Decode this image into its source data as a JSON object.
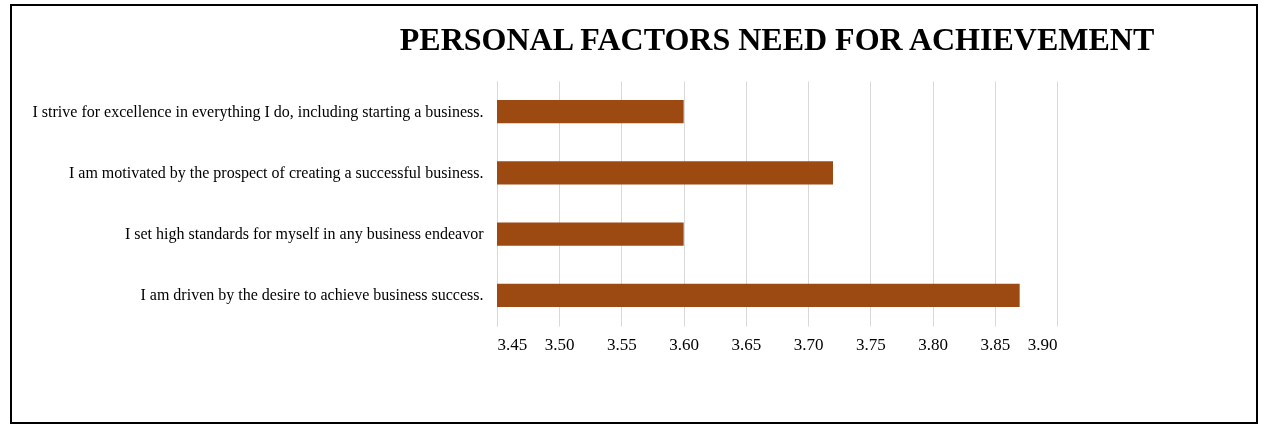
{
  "chart_data": {
    "type": "bar",
    "orientation": "horizontal",
    "title": "PERSONAL FACTORS  NEED FOR ACHIEVEMENT",
    "categories": [
      "I strive for excellence in everything I do, including starting a business.",
      "I am motivated by the prospect of creating a successful business.",
      "I set high standards for myself in any business endeavor",
      "I am driven by the desire to achieve business success."
    ],
    "values": [
      3.6,
      3.72,
      3.6,
      3.87
    ],
    "color": "#9c4a11",
    "xlim": [
      3.45,
      3.9
    ],
    "xticks": [
      3.45,
      {
        "value": 3.5,
        "label": "3.50"
      },
      3.55,
      {
        "value": 3.6,
        "label": "3.60"
      },
      3.65,
      {
        "value": 3.7,
        "label": "3.70"
      },
      3.75,
      {
        "value": 3.8,
        "label": "3.80"
      },
      3.85,
      {
        "value": 3.9,
        "label": "3.90"
      }
    ],
    "grid": "x"
  }
}
